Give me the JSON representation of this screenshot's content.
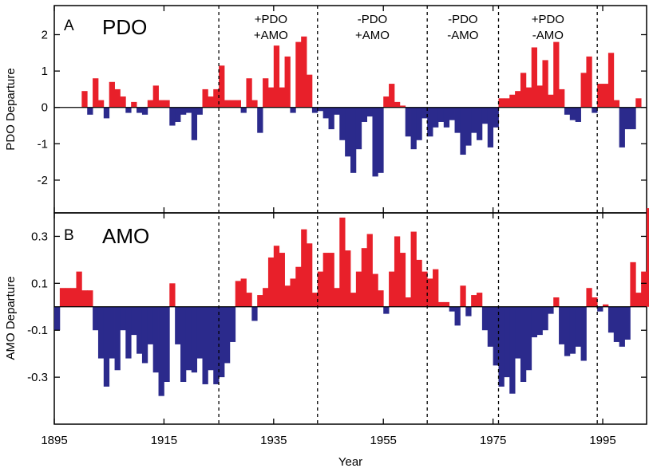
{
  "x_axis": {
    "title": "Year",
    "range": [
      1895,
      2003
    ],
    "ticks": [
      1895,
      1915,
      1935,
      1955,
      1975,
      1995
    ],
    "tick_labels": [
      "1895",
      "1915",
      "1935",
      "1955",
      "1975",
      "1995"
    ]
  },
  "regime_boundaries": [
    1925,
    1943,
    1963,
    1976,
    1994
  ],
  "phase_labels": [
    {
      "line1": "+PDO",
      "line2": "+AMO",
      "x_year": 1934.5
    },
    {
      "line1": "-PDO",
      "line2": "+AMO",
      "x_year": 1953
    },
    {
      "line1": "-PDO",
      "line2": "-AMO",
      "x_year": 1969.5
    },
    {
      "line1": "+PDO",
      "line2": "-AMO",
      "x_year": 1985
    }
  ],
  "colors": {
    "positive": "#e8202a",
    "negative": "#2b2a8c"
  },
  "panels": {
    "pdo": {
      "letter": "A",
      "title": "PDO"
    },
    "amo": {
      "letter": "B",
      "title": "AMO"
    }
  },
  "chart_data": [
    {
      "type": "bar",
      "title": "PDO",
      "ylabel": "PDO Departure",
      "xlabel": "",
      "ylim": [
        -2.9,
        2.8
      ],
      "y_ticks": [
        2,
        1,
        0,
        -1,
        -2
      ],
      "y_tick_labels": [
        "2",
        "1",
        "0",
        "-1",
        "-2"
      ],
      "x_start_year": 1900,
      "values": [
        0.45,
        -0.2,
        0.8,
        0.2,
        -0.3,
        0.7,
        0.5,
        0.3,
        -0.15,
        0.15,
        -0.15,
        -0.2,
        0.2,
        0.6,
        0.2,
        0.2,
        -0.5,
        -0.4,
        -0.2,
        -0.15,
        -0.9,
        -0.2,
        0.5,
        0.3,
        0.5,
        1.15,
        0.2,
        0.2,
        0.2,
        -0.15,
        0.8,
        0.2,
        -0.7,
        0.8,
        0.55,
        1.7,
        0.55,
        1.4,
        -0.15,
        1.8,
        1.95,
        0.9,
        -0.15,
        -0.1,
        -0.3,
        -0.6,
        -0.2,
        -0.9,
        -1.35,
        -1.8,
        -1.15,
        -0.4,
        -0.25,
        -1.9,
        -1.8,
        0.3,
        0.65,
        0.15,
        0.05,
        -0.8,
        -1.15,
        -0.9,
        -0.3,
        -0.8,
        -0.55,
        -0.4,
        -0.55,
        -0.35,
        -0.7,
        -1.3,
        -1.05,
        -0.7,
        -0.9,
        -0.45,
        -1.1,
        -0.55,
        0.25,
        0.25,
        0.35,
        0.45,
        0.95,
        0.55,
        1.65,
        0.6,
        1.3,
        0.35,
        1.8,
        0.5,
        -0.2,
        -0.35,
        -0.4,
        0.95,
        1.4,
        -0.15,
        0.65,
        0.65,
        1.5,
        0.2,
        -1.1,
        -0.6,
        -0.6,
        0.25
      ]
    },
    {
      "type": "bar",
      "title": "AMO",
      "ylabel": "AMO Departure",
      "xlabel": "Year",
      "ylim": [
        -0.5,
        0.4
      ],
      "y_ticks": [
        0.3,
        0.1,
        -0.1,
        -0.3
      ],
      "y_tick_labels": [
        "0.3",
        "0.1",
        "-0.1",
        "-0.3"
      ],
      "x_start_year": 1895,
      "values": [
        -0.1,
        0.08,
        0.08,
        0.08,
        0.15,
        0.07,
        0.07,
        -0.1,
        -0.22,
        -0.34,
        -0.22,
        -0.27,
        -0.1,
        -0.22,
        -0.12,
        -0.2,
        -0.24,
        -0.16,
        -0.28,
        -0.38,
        -0.32,
        0.1,
        -0.16,
        -0.32,
        -0.27,
        -0.28,
        -0.22,
        -0.33,
        -0.27,
        -0.33,
        -0.3,
        -0.24,
        -0.15,
        0.11,
        0.12,
        0.06,
        -0.06,
        0.05,
        0.08,
        0.21,
        0.26,
        0.23,
        0.09,
        0.12,
        0.17,
        0.33,
        0.27,
        0.06,
        0.15,
        0.23,
        0.23,
        0.08,
        0.38,
        0.24,
        0.06,
        0.15,
        0.25,
        0.31,
        0.14,
        0.07,
        -0.03,
        0.15,
        0.3,
        0.23,
        0.04,
        0.32,
        0.2,
        0.15,
        0.12,
        0.16,
        0.02,
        0.02,
        -0.02,
        -0.08,
        0.09,
        -0.04,
        0.05,
        0.06,
        -0.1,
        -0.17,
        -0.25,
        -0.34,
        -0.3,
        -0.37,
        -0.22,
        -0.32,
        -0.27,
        -0.13,
        -0.12,
        -0.1,
        -0.03,
        0.04,
        -0.16,
        -0.21,
        -0.2,
        -0.17,
        -0.23,
        0.08,
        0.04,
        -0.02,
        0.01,
        -0.11,
        -0.15,
        -0.17,
        -0.14,
        0.19,
        0.06,
        0.15,
        0.42,
        0.15
      ]
    }
  ]
}
